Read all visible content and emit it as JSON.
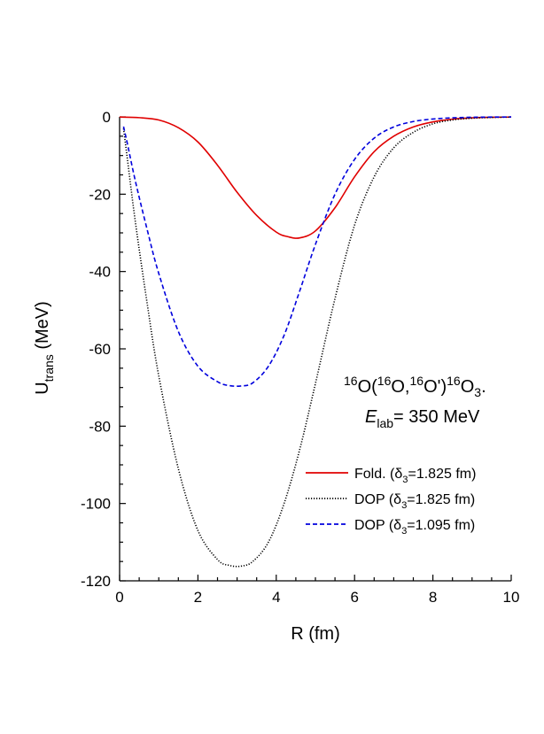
{
  "chart_data": {
    "type": "line",
    "title": "",
    "xlabel": "R (fm)",
    "ylabel": "U_trans (MeV)",
    "ylabel_main": "U",
    "ylabel_sub": "trans",
    "ylabel_unit": " (MeV)",
    "xlim": [
      0,
      10
    ],
    "ylim": [
      -120,
      0
    ],
    "x_ticks": [
      0,
      2,
      4,
      6,
      8,
      10
    ],
    "y_ticks": [
      0,
      -20,
      -40,
      -60,
      -80,
      -100,
      -120
    ],
    "x_tick_labels": [
      "0",
      "2",
      "4",
      "6",
      "8",
      "10"
    ],
    "y_tick_labels": [
      "0",
      "-20",
      "-40",
      "-60",
      "-80",
      "-100",
      "-120"
    ],
    "grid": false,
    "legend_position": "bottom-right",
    "annotation": {
      "reaction": {
        "a1": "16",
        "b1": "O(",
        "a2": "16",
        "b2": "O,",
        "a3": "16",
        "b3": "O')",
        "a4": "16",
        "b4": "O",
        "sub": "3",
        "tail": "."
      },
      "energy": {
        "sym": "E",
        "sub": "lab",
        "value": "= 350 MeV"
      }
    },
    "series": [
      {
        "name": "Fold. (δ3=1.825 fm)",
        "legend_prefix": "Fold. (δ",
        "legend_sub": "3",
        "legend_suffix": "=1.825 fm)",
        "color": "#e00000",
        "dash": "solid",
        "x": [
          0,
          0.5,
          1.0,
          1.5,
          2.0,
          2.5,
          3.0,
          3.5,
          4.0,
          4.3,
          4.6,
          5.0,
          5.5,
          6.0,
          6.5,
          7.0,
          7.5,
          8.0,
          8.5,
          9.0,
          9.5,
          10.0
        ],
        "y": [
          -0.05,
          -0.2,
          -0.8,
          -2.8,
          -6.5,
          -12.5,
          -19.5,
          -25.5,
          -29.8,
          -31.0,
          -31.3,
          -29.5,
          -23.5,
          -15.5,
          -9.0,
          -5.0,
          -2.6,
          -1.3,
          -0.6,
          -0.25,
          -0.1,
          -0.05
        ]
      },
      {
        "name": "DOP (δ3=1.825 fm)",
        "legend_prefix": "DOP (δ",
        "legend_sub": "3",
        "legend_suffix": "=1.825 fm)",
        "color": "#000000",
        "dash": "dotted",
        "x": [
          0.1,
          0.2,
          0.4,
          0.7,
          1.0,
          1.5,
          2.0,
          2.5,
          2.8,
          3.1,
          3.4,
          3.8,
          4.2,
          4.6,
          5.0,
          5.5,
          6.0,
          6.5,
          7.0,
          7.5,
          8.0,
          8.5,
          9.0,
          9.5,
          10.0
        ],
        "y": [
          -3.0,
          -11.0,
          -27.0,
          -48.0,
          -67.0,
          -91.0,
          -107.0,
          -114.5,
          -116.0,
          -116.2,
          -115.0,
          -110.0,
          -100.0,
          -86.0,
          -69.0,
          -47.0,
          -28.0,
          -15.5,
          -8.0,
          -4.0,
          -1.8,
          -0.8,
          -0.35,
          -0.15,
          -0.05
        ]
      },
      {
        "name": "DOP (δ3=1.095 fm)",
        "legend_prefix": "DOP (δ",
        "legend_sub": "3",
        "legend_suffix": "=1.095 fm)",
        "color": "#0000dd",
        "dash": "dashed",
        "x": [
          0.1,
          0.2,
          0.4,
          0.7,
          1.0,
          1.5,
          2.0,
          2.5,
          2.8,
          3.1,
          3.4,
          3.8,
          4.2,
          4.6,
          5.0,
          5.5,
          6.0,
          6.5,
          7.0,
          7.5,
          8.0,
          8.5,
          9.0,
          9.5,
          10.0
        ],
        "y": [
          -2.5,
          -7.0,
          -16.5,
          -29.0,
          -40.5,
          -55.5,
          -64.5,
          -68.5,
          -69.5,
          -69.6,
          -68.8,
          -64.5,
          -56.5,
          -45.0,
          -33.0,
          -20.0,
          -11.0,
          -5.5,
          -2.6,
          -1.2,
          -0.55,
          -0.25,
          -0.1,
          -0.05,
          -0.02
        ]
      }
    ]
  }
}
